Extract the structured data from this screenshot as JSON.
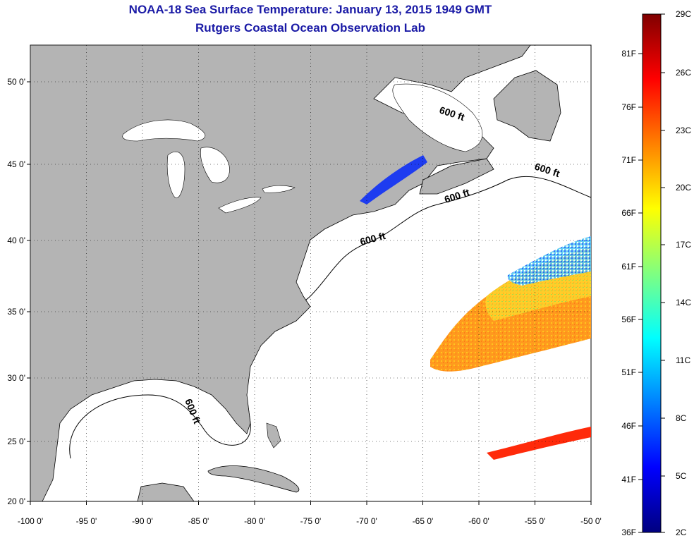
{
  "header": {
    "title": "NOAA-18 Sea Surface Temperature:  January 13, 2015 1949 GMT",
    "subtitle": "Rutgers Coastal Ocean Observation Lab"
  },
  "map": {
    "lon_range": [
      -100,
      -50
    ],
    "lat_range": [
      20,
      52.5
    ],
    "lon_ticks": [
      "-100 0'",
      "-95 0'",
      "-90 0'",
      "-85 0'",
      "-80 0'",
      "-75 0'",
      "-70 0'",
      "-65 0'",
      "-60 0'",
      "-55 0'",
      "-50 0'"
    ],
    "lat_ticks": [
      "20 0'",
      "25 0'",
      "30 0'",
      "35 0'",
      "40 0'",
      "45 0'",
      "50 0'"
    ],
    "contour_label": "600 ft",
    "land_color": "#b4b4b4",
    "ocean_color": "#ffffff"
  },
  "colorbar": {
    "f_labels": [
      "36F",
      "41F",
      "46F",
      "51F",
      "56F",
      "61F",
      "66F",
      "71F",
      "76F",
      "81F"
    ],
    "c_labels": [
      "2C",
      "5C",
      "8C",
      "11C",
      "14C",
      "17C",
      "20C",
      "23C",
      "26C",
      "29C"
    ],
    "colors": [
      "#00007f",
      "#0000ff",
      "#007fff",
      "#00ffff",
      "#7fff7f",
      "#ffff00",
      "#ff7f00",
      "#ff0000",
      "#7f0000"
    ]
  }
}
